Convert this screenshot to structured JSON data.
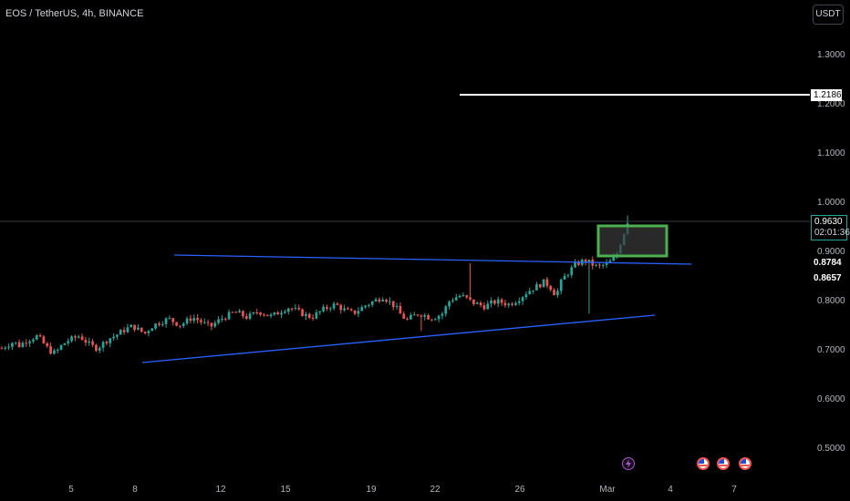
{
  "header": {
    "title": "EOS / TetherUS, 4h, BINANCE",
    "currency": "USDT"
  },
  "price_labels": {
    "horizontal_line": "1.2186",
    "last_price": "0.9630",
    "countdown": "02:01:36",
    "level_1": "0.8784",
    "level_2": "0.8657"
  },
  "events": [
    "lightning-icon",
    "us-flag-icon",
    "us-flag-icon",
    "us-flag-icon"
  ],
  "colors": {
    "up": "#26a69a",
    "down": "#ef5350",
    "trendline": "#2962ff",
    "box": "#4caf50",
    "hline": "#ffffff"
  },
  "chart_data": {
    "type": "candlestick",
    "title": "EOS / TetherUS, 4h, BINANCE",
    "y_ticks": [
      "1.3000",
      "1.2000",
      "1.1000",
      "1.0000",
      "0.9000",
      "0.8000",
      "0.7000",
      "0.6000",
      "0.5000"
    ],
    "x_ticks": [
      "5",
      "8",
      "12",
      "15",
      "19",
      "22",
      "26",
      "Mar",
      "4",
      "7"
    ],
    "ylim": [
      0.48,
      1.35
    ],
    "close_path": [
      0.705,
      0.712,
      0.718,
      0.71,
      0.72,
      0.725,
      0.73,
      0.715,
      0.7,
      0.695,
      0.71,
      0.72,
      0.725,
      0.73,
      0.72,
      0.71,
      0.705,
      0.715,
      0.725,
      0.73,
      0.738,
      0.745,
      0.75,
      0.742,
      0.735,
      0.748,
      0.755,
      0.76,
      0.765,
      0.758,
      0.752,
      0.76,
      0.768,
      0.762,
      0.755,
      0.748,
      0.758,
      0.766,
      0.772,
      0.778,
      0.775,
      0.768,
      0.772,
      0.78,
      0.776,
      0.77,
      0.774,
      0.782,
      0.788,
      0.784,
      0.778,
      0.772,
      0.768,
      0.776,
      0.784,
      0.79,
      0.794,
      0.786,
      0.78,
      0.776,
      0.784,
      0.792,
      0.798,
      0.804,
      0.81,
      0.8,
      0.79,
      0.772,
      0.762,
      0.77,
      0.776,
      0.772,
      0.766,
      0.77,
      0.776,
      0.8,
      0.808,
      0.812,
      0.806,
      0.798,
      0.794,
      0.79,
      0.796,
      0.8,
      0.798,
      0.794,
      0.8,
      0.808,
      0.818,
      0.826,
      0.832,
      0.84,
      0.83,
      0.812,
      0.844,
      0.858,
      0.872,
      0.88,
      0.884,
      0.876,
      0.87,
      0.874,
      0.88,
      0.89,
      0.925,
      0.963
    ],
    "annotations": [
      {
        "type": "hline",
        "value": 1.2186,
        "label": "1.2186"
      },
      {
        "type": "hline",
        "value": 0.963,
        "label": "0.9630",
        "style": "last-price"
      },
      {
        "type": "trendline",
        "points": [
          [
            0.0,
            0.89
          ],
          [
            1.0,
            0.877
          ]
        ]
      },
      {
        "type": "trendline",
        "points": [
          [
            0.0,
            0.679
          ],
          [
            1.0,
            0.771
          ]
        ]
      },
      {
        "type": "rectangle",
        "price_range": [
          0.892,
          0.953
        ]
      }
    ],
    "grid": false
  }
}
